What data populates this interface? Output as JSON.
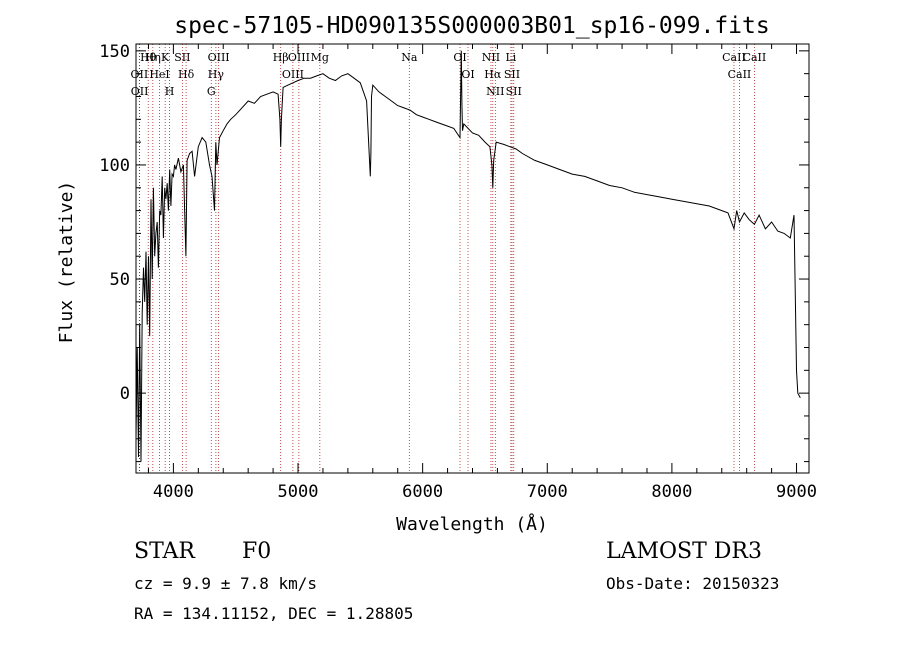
{
  "chart_data": {
    "type": "line",
    "title": "spec-57105-HD090135S000003B01_sp16-099.fits",
    "xlabel": "Wavelength (Å)",
    "ylabel": "Flux (relative)",
    "xlim": [
      3700,
      9100
    ],
    "ylim": [
      -35,
      153
    ],
    "x_ticks": [
      4000,
      5000,
      6000,
      7000,
      8000,
      9000
    ],
    "y_ticks": [
      0,
      50,
      100,
      150
    ],
    "grid": false,
    "series": [
      {
        "name": "spectrum",
        "x": [
          3700,
          3710,
          3720,
          3730,
          3740,
          3750,
          3760,
          3770,
          3780,
          3790,
          3800,
          3810,
          3820,
          3830,
          3840,
          3850,
          3860,
          3870,
          3880,
          3890,
          3900,
          3910,
          3920,
          3930,
          3940,
          3950,
          3960,
          3970,
          3980,
          3990,
          4000,
          4010,
          4020,
          4040,
          4060,
          4080,
          4100,
          4110,
          4130,
          4150,
          4170,
          4200,
          4230,
          4260,
          4290,
          4310,
          4330,
          4340,
          4350,
          4370,
          4400,
          4430,
          4460,
          4500,
          4550,
          4600,
          4650,
          4700,
          4750,
          4800,
          4840,
          4855,
          4861,
          4867,
          4880,
          4920,
          4960,
          5000,
          5050,
          5100,
          5150,
          5200,
          5250,
          5300,
          5350,
          5400,
          5450,
          5500,
          5550,
          5580,
          5585,
          5590,
          5600,
          5650,
          5700,
          5750,
          5800,
          5850,
          5900,
          5950,
          6000,
          6050,
          6100,
          6150,
          6200,
          6250,
          6300,
          6310,
          6315,
          6320,
          6330,
          6400,
          6450,
          6500,
          6540,
          6556,
          6563,
          6570,
          6590,
          6650,
          6700,
          6750,
          6800,
          6900,
          7000,
          7100,
          7200,
          7300,
          7400,
          7500,
          7600,
          7700,
          7800,
          7900,
          8000,
          8100,
          8200,
          8300,
          8400,
          8450,
          8498,
          8520,
          8542,
          8580,
          8620,
          8662,
          8700,
          8750,
          8800,
          8850,
          8900,
          8950,
          8980,
          9000,
          9010,
          9030
        ],
        "values": [
          -20,
          20,
          -28,
          30,
          -30,
          35,
          55,
          40,
          62,
          30,
          60,
          25,
          85,
          50,
          90,
          60,
          70,
          75,
          55,
          80,
          78,
          95,
          68,
          90,
          85,
          92,
          80,
          98,
          82,
          96,
          95,
          100,
          98,
          103,
          97,
          100,
          60,
          102,
          105,
          106,
          95,
          108,
          112,
          110,
          100,
          95,
          80,
          110,
          100,
          112,
          115,
          118,
          120,
          122,
          125,
          128,
          127,
          130,
          131,
          132,
          131,
          120,
          108,
          120,
          134,
          135,
          136,
          137,
          138,
          138,
          139,
          140,
          138,
          137,
          139,
          140,
          138,
          136,
          128,
          95,
          105,
          130,
          135,
          132,
          130,
          128,
          126,
          125,
          124,
          122,
          121,
          120,
          119,
          118,
          117,
          116,
          112,
          150,
          127,
          115,
          118,
          114,
          113,
          110,
          108,
          100,
          90,
          102,
          110,
          109,
          108,
          107,
          105,
          102,
          100,
          98,
          96,
          95,
          93,
          91,
          90,
          88,
          87,
          86,
          85,
          84,
          83,
          82,
          80,
          79,
          72,
          80,
          75,
          79,
          76,
          74,
          78,
          72,
          75,
          71,
          70,
          68,
          78,
          10,
          0,
          -2
        ]
      }
    ],
    "lines": [
      {
        "label": "Hθ",
        "wavelength": 3798
      },
      {
        "label": "OII",
        "wavelength": 3727
      },
      {
        "label": "OII",
        "wavelength": 3729
      },
      {
        "label": "Hη",
        "wavelength": 3835
      },
      {
        "label": "HeI",
        "wavelength": 3889
      },
      {
        "label": "K",
        "wavelength": 3934
      },
      {
        "label": "H",
        "wavelength": 3969
      },
      {
        "label": "SII",
        "wavelength": 4072
      },
      {
        "label": "Hδ",
        "wavelength": 4102
      },
      {
        "label": "OIII",
        "wavelength": 4363
      },
      {
        "label": "Hγ",
        "wavelength": 4341
      },
      {
        "label": "G",
        "wavelength": 4304
      },
      {
        "label": "Hβ",
        "wavelength": 4861
      },
      {
        "label": "OIII",
        "wavelength": 4959
      },
      {
        "label": "OIII",
        "wavelength": 5007
      },
      {
        "label": "Mg",
        "wavelength": 5175
      },
      {
        "label": "Na",
        "wavelength": 5893
      },
      {
        "label": "OI",
        "wavelength": 6300
      },
      {
        "label": "OI",
        "wavelength": 6364
      },
      {
        "label": "NII",
        "wavelength": 6548
      },
      {
        "label": "Hα",
        "wavelength": 6563
      },
      {
        "label": "NII",
        "wavelength": 6583
      },
      {
        "label": "Li",
        "wavelength": 6708
      },
      {
        "label": "SII",
        "wavelength": 6717
      },
      {
        "label": "SII",
        "wavelength": 6731
      },
      {
        "label": "CaII",
        "wavelength": 8498
      },
      {
        "label": "CaII",
        "wavelength": 8542
      },
      {
        "label": "CaII",
        "wavelength": 8662
      }
    ]
  },
  "info": {
    "object_class": "STAR",
    "subclass": "F0",
    "survey": "LAMOST DR3",
    "redshift_text": "cz = 9.9 ± 7.8 km/s",
    "obs_date": "Obs-Date: 20150323",
    "coords": "RA = 134.11152, DEC =    1.28805"
  },
  "colors": {
    "axis": "#000000",
    "spectrum": "#000000",
    "line_marker": "#b22222"
  }
}
